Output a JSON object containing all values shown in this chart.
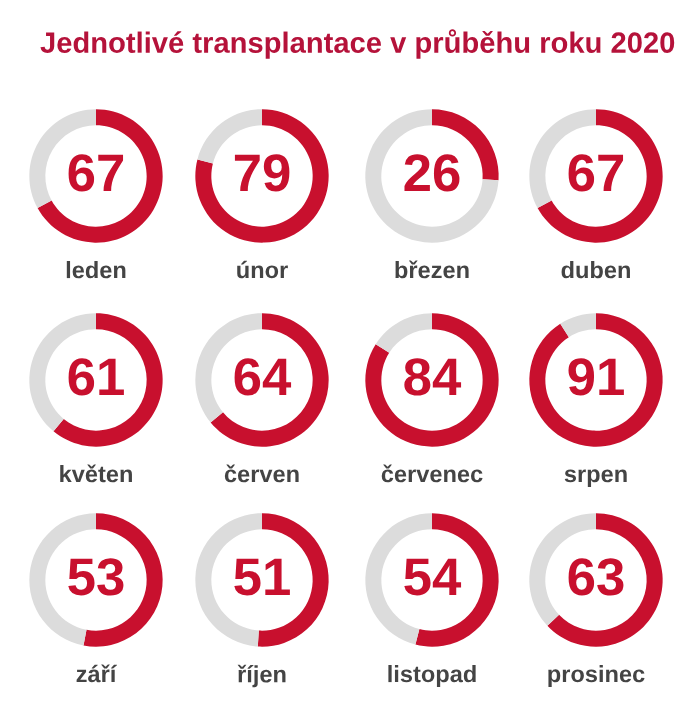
{
  "chart_data": [
    {
      "type": "other",
      "title": "Jednotlivé transplantace v průběhu roku 2020"
    },
    {
      "type": "donut",
      "xlabel": "leden",
      "categories": [
        null,
        null
      ],
      "values": [
        67,
        33
      ],
      "colors": [
        "#c8102e",
        "#dcdcdc"
      ],
      "value_labels": [
        "67",
        null
      ]
    },
    {
      "type": "donut",
      "xlabel": "únor",
      "categories": [
        null,
        null
      ],
      "values": [
        79,
        21
      ],
      "colors": [
        "#c8102e",
        "#dcdcdc"
      ],
      "value_labels": [
        "79",
        null
      ]
    },
    {
      "type": "donut",
      "xlabel": "březen",
      "categories": [
        null,
        null
      ],
      "values": [
        26,
        74
      ],
      "colors": [
        "#c8102e",
        "#dcdcdc"
      ],
      "value_labels": [
        "26",
        null
      ]
    },
    {
      "type": "donut",
      "xlabel": "duben",
      "categories": [
        null,
        null
      ],
      "values": [
        67,
        33
      ],
      "colors": [
        "#c8102e",
        "#dcdcdc"
      ],
      "value_labels": [
        "67",
        null
      ]
    },
    {
      "type": "donut",
      "xlabel": "květen",
      "categories": [
        null,
        null
      ],
      "values": [
        61,
        39
      ],
      "colors": [
        "#c8102e",
        "#dcdcdc"
      ],
      "value_labels": [
        "61",
        null
      ]
    },
    {
      "type": "donut",
      "xlabel": "červen",
      "categories": [
        null,
        null
      ],
      "values": [
        64,
        36
      ],
      "colors": [
        "#c8102e",
        "#dcdcdc"
      ],
      "value_labels": [
        "64",
        null
      ]
    },
    {
      "type": "donut",
      "xlabel": "červenec",
      "categories": [
        null,
        null
      ],
      "values": [
        84,
        16
      ],
      "colors": [
        "#c8102e",
        "#dcdcdc"
      ],
      "value_labels": [
        "84",
        null
      ]
    },
    {
      "type": "donut",
      "xlabel": "srpen",
      "categories": [
        null,
        null
      ],
      "values": [
        91,
        9
      ],
      "colors": [
        "#c8102e",
        "#dcdcdc"
      ],
      "value_labels": [
        "91",
        null
      ]
    },
    {
      "type": "donut",
      "xlabel": "září",
      "categories": [
        null,
        null
      ],
      "values": [
        53,
        47
      ],
      "colors": [
        "#c8102e",
        "#dcdcdc"
      ],
      "value_labels": [
        "53",
        null
      ]
    },
    {
      "type": "donut",
      "xlabel": "říjen",
      "categories": [
        null,
        null
      ],
      "values": [
        51,
        49
      ],
      "colors": [
        "#c8102e",
        "#dcdcdc"
      ],
      "value_labels": [
        "51",
        null
      ]
    },
    {
      "type": "donut",
      "xlabel": "listopad",
      "categories": [
        null,
        null
      ],
      "values": [
        54,
        46
      ],
      "colors": [
        "#c8102e",
        "#dcdcdc"
      ],
      "value_labels": [
        "54",
        null
      ]
    },
    {
      "type": "donut",
      "xlabel": "prosinec",
      "categories": [
        null,
        null
      ],
      "values": [
        63,
        37
      ],
      "colors": [
        "#c8102e",
        "#dcdcdc"
      ],
      "value_labels": [
        "63",
        null
      ]
    }
  ]
}
